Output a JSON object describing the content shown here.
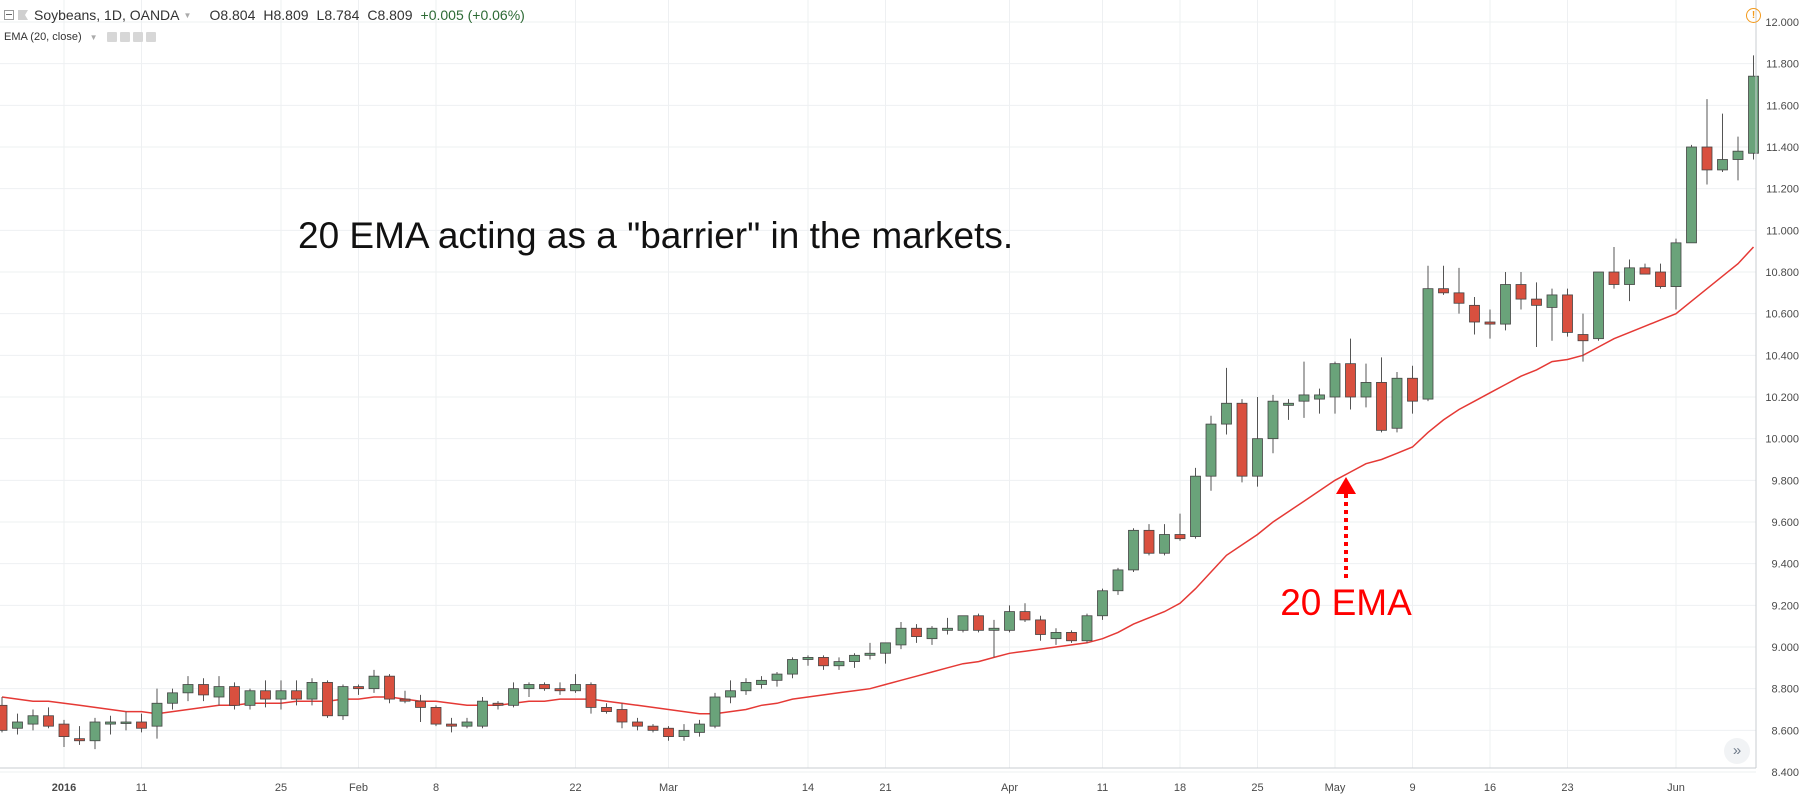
{
  "header": {
    "symbol": "Soybeans, 1D, OANDA",
    "open": "O8.804",
    "high": "H8.809",
    "low": "L8.784",
    "close": "C8.809",
    "change": "+0.005 (+0.06%)",
    "study": "EMA (20, close)"
  },
  "colors": {
    "up": "#6aa37a",
    "down": "#d9503f",
    "ema": "#e53935",
    "grid": "#eef0f2",
    "annotation": "#ff0000"
  },
  "icons": [
    "collapse-icon",
    "flag-icon",
    "alert-icon",
    "scroll-right-icon"
  ],
  "annotations": {
    "headline": "20 EMA acting as a \"barrier\" in the markets.",
    "ema_label": "20 EMA"
  },
  "chart_data": {
    "type": "candlestick",
    "ylim": [
      8.35,
      12.05
    ],
    "ytick_values": [
      8.4,
      8.6,
      8.8,
      9.0,
      9.2,
      9.4,
      9.6,
      9.8,
      10.0,
      10.2,
      10.4,
      10.6,
      10.8,
      11.0,
      11.2,
      11.4,
      11.6,
      11.8,
      12.0
    ],
    "ytick_labels": [
      "8.400",
      "8.600",
      "8.800",
      "9.000",
      "9.200",
      "9.400",
      "9.600",
      "9.800",
      "10.000",
      "10.200",
      "10.400",
      "10.600",
      "10.800",
      "11.000",
      "11.200",
      "11.400",
      "11.600",
      "11.800",
      "12.000"
    ],
    "xticks": [
      {
        "label": "2016",
        "index": 4,
        "bold": true
      },
      {
        "label": "11",
        "index": 9
      },
      {
        "label": "25",
        "index": 18
      },
      {
        "label": "Feb",
        "index": 23
      },
      {
        "label": "8",
        "index": 28
      },
      {
        "label": "22",
        "index": 37
      },
      {
        "label": "Mar",
        "index": 43
      },
      {
        "label": "14",
        "index": 52
      },
      {
        "label": "21",
        "index": 57
      },
      {
        "label": "Apr",
        "index": 65
      },
      {
        "label": "11",
        "index": 71
      },
      {
        "label": "18",
        "index": 76
      },
      {
        "label": "25",
        "index": 81
      },
      {
        "label": "May",
        "index": 86
      },
      {
        "label": "9",
        "index": 91
      },
      {
        "label": "16",
        "index": 96
      },
      {
        "label": "23",
        "index": 101
      },
      {
        "label": "Jun",
        "index": 108
      }
    ],
    "candles": [
      [
        8.72,
        8.76,
        8.59,
        8.6
      ],
      [
        8.61,
        8.68,
        8.58,
        8.64
      ],
      [
        8.63,
        8.7,
        8.6,
        8.67
      ],
      [
        8.67,
        8.71,
        8.61,
        8.62
      ],
      [
        8.63,
        8.65,
        8.52,
        8.57
      ],
      [
        8.56,
        8.62,
        8.53,
        8.55
      ],
      [
        8.55,
        8.66,
        8.51,
        8.64
      ],
      [
        8.63,
        8.67,
        8.58,
        8.64
      ],
      [
        8.64,
        8.69,
        8.6,
        8.64
      ],
      [
        8.64,
        8.68,
        8.59,
        8.61
      ],
      [
        8.62,
        8.8,
        8.56,
        8.73
      ],
      [
        8.73,
        8.8,
        8.7,
        8.78
      ],
      [
        8.78,
        8.86,
        8.74,
        8.82
      ],
      [
        8.82,
        8.85,
        8.74,
        8.77
      ],
      [
        8.76,
        8.86,
        8.72,
        8.81
      ],
      [
        8.81,
        8.83,
        8.7,
        8.72
      ],
      [
        8.72,
        8.8,
        8.7,
        8.79
      ],
      [
        8.79,
        8.84,
        8.71,
        8.75
      ],
      [
        8.75,
        8.84,
        8.7,
        8.79
      ],
      [
        8.79,
        8.84,
        8.72,
        8.75
      ],
      [
        8.75,
        8.85,
        8.72,
        8.83
      ],
      [
        8.83,
        8.84,
        8.66,
        8.67
      ],
      [
        8.67,
        8.82,
        8.65,
        8.81
      ],
      [
        8.81,
        8.82,
        8.77,
        8.8
      ],
      [
        8.8,
        8.89,
        8.78,
        8.86
      ],
      [
        8.86,
        8.87,
        8.73,
        8.75
      ],
      [
        8.75,
        8.79,
        8.73,
        8.74
      ],
      [
        8.74,
        8.77,
        8.64,
        8.71
      ],
      [
        8.71,
        8.72,
        8.62,
        8.63
      ],
      [
        8.63,
        8.66,
        8.59,
        8.62
      ],
      [
        8.62,
        8.66,
        8.61,
        8.64
      ],
      [
        8.62,
        8.76,
        8.61,
        8.74
      ],
      [
        8.73,
        8.74,
        8.7,
        8.72
      ],
      [
        8.72,
        8.83,
        8.71,
        8.8
      ],
      [
        8.8,
        8.83,
        8.76,
        8.82
      ],
      [
        8.82,
        8.83,
        8.79,
        8.8
      ],
      [
        8.8,
        8.83,
        8.77,
        8.79
      ],
      [
        8.79,
        8.87,
        8.78,
        8.82
      ],
      [
        8.82,
        8.83,
        8.68,
        8.71
      ],
      [
        8.71,
        8.73,
        8.68,
        8.69
      ],
      [
        8.7,
        8.73,
        8.61,
        8.64
      ],
      [
        8.64,
        8.66,
        8.6,
        8.62
      ],
      [
        8.62,
        8.63,
        8.59,
        8.6
      ],
      [
        8.61,
        8.62,
        8.55,
        8.57
      ],
      [
        8.57,
        8.63,
        8.55,
        8.6
      ],
      [
        8.59,
        8.65,
        8.57,
        8.63
      ],
      [
        8.62,
        8.78,
        8.61,
        8.76
      ],
      [
        8.76,
        8.84,
        8.73,
        8.79
      ],
      [
        8.79,
        8.85,
        8.77,
        8.83
      ],
      [
        8.82,
        8.86,
        8.8,
        8.84
      ],
      [
        8.84,
        8.88,
        8.81,
        8.87
      ],
      [
        8.87,
        8.95,
        8.85,
        8.94
      ],
      [
        8.94,
        8.96,
        8.91,
        8.95
      ],
      [
        8.95,
        8.96,
        8.89,
        8.91
      ],
      [
        8.91,
        8.95,
        8.89,
        8.93
      ],
      [
        8.93,
        8.97,
        8.9,
        8.96
      ],
      [
        8.96,
        9.02,
        8.94,
        8.97
      ],
      [
        8.97,
        9.02,
        8.92,
        9.02
      ],
      [
        9.01,
        9.12,
        8.99,
        9.09
      ],
      [
        9.09,
        9.11,
        9.02,
        9.05
      ],
      [
        9.04,
        9.1,
        9.01,
        9.09
      ],
      [
        9.08,
        9.14,
        9.06,
        9.09
      ],
      [
        9.08,
        9.15,
        9.07,
        9.15
      ],
      [
        9.15,
        9.16,
        9.07,
        9.08
      ],
      [
        9.08,
        9.13,
        8.95,
        9.09
      ],
      [
        9.08,
        9.2,
        9.07,
        9.17
      ],
      [
        9.17,
        9.21,
        9.12,
        9.13
      ],
      [
        9.13,
        9.15,
        9.03,
        9.06
      ],
      [
        9.04,
        9.09,
        9.01,
        9.07
      ],
      [
        9.07,
        9.08,
        9.02,
        9.03
      ],
      [
        9.03,
        9.16,
        9.02,
        9.15
      ],
      [
        9.15,
        9.28,
        9.13,
        9.27
      ],
      [
        9.27,
        9.38,
        9.25,
        9.37
      ],
      [
        9.37,
        9.57,
        9.36,
        9.56
      ],
      [
        9.56,
        9.59,
        9.44,
        9.45
      ],
      [
        9.45,
        9.59,
        9.44,
        9.54
      ],
      [
        9.54,
        9.64,
        9.51,
        9.52
      ],
      [
        9.53,
        9.86,
        9.52,
        9.82
      ],
      [
        9.82,
        10.11,
        9.75,
        10.07
      ],
      [
        10.07,
        10.34,
        10.02,
        10.17
      ],
      [
        10.17,
        10.19,
        9.79,
        9.82
      ],
      [
        9.82,
        10.2,
        9.77,
        10.0
      ],
      [
        10.0,
        10.21,
        9.93,
        10.18
      ],
      [
        10.16,
        10.19,
        10.09,
        10.17
      ],
      [
        10.18,
        10.37,
        10.1,
        10.21
      ],
      [
        10.19,
        10.24,
        10.12,
        10.21
      ],
      [
        10.2,
        10.37,
        10.12,
        10.36
      ],
      [
        10.36,
        10.48,
        10.14,
        10.2
      ],
      [
        10.2,
        10.36,
        10.15,
        10.27
      ],
      [
        10.27,
        10.39,
        10.03,
        10.04
      ],
      [
        10.05,
        10.32,
        10.03,
        10.29
      ],
      [
        10.29,
        10.35,
        10.12,
        10.18
      ],
      [
        10.19,
        10.83,
        10.18,
        10.72
      ],
      [
        10.72,
        10.83,
        10.69,
        10.7
      ],
      [
        10.7,
        10.82,
        10.6,
        10.65
      ],
      [
        10.64,
        10.68,
        10.5,
        10.56
      ],
      [
        10.56,
        10.62,
        10.48,
        10.55
      ],
      [
        10.55,
        10.8,
        10.52,
        10.74
      ],
      [
        10.74,
        10.8,
        10.62,
        10.67
      ],
      [
        10.67,
        10.75,
        10.44,
        10.64
      ],
      [
        10.63,
        10.72,
        10.47,
        10.69
      ],
      [
        10.69,
        10.72,
        10.49,
        10.51
      ],
      [
        10.5,
        10.6,
        10.37,
        10.47
      ],
      [
        10.48,
        10.8,
        10.47,
        10.8
      ],
      [
        10.8,
        10.92,
        10.72,
        10.74
      ],
      [
        10.74,
        10.86,
        10.66,
        10.82
      ],
      [
        10.82,
        10.84,
        10.79,
        10.79
      ],
      [
        10.8,
        10.84,
        10.72,
        10.73
      ],
      [
        10.73,
        10.96,
        10.62,
        10.94
      ],
      [
        10.94,
        11.41,
        10.94,
        11.4
      ],
      [
        11.4,
        11.63,
        11.22,
        11.29
      ],
      [
        11.29,
        11.56,
        11.28,
        11.34
      ],
      [
        11.34,
        11.45,
        11.24,
        11.38
      ],
      [
        11.37,
        11.84,
        11.34,
        11.74
      ]
    ],
    "ema": [
      8.76,
      8.75,
      8.74,
      8.74,
      8.73,
      8.72,
      8.71,
      8.7,
      8.69,
      8.69,
      8.68,
      8.69,
      8.7,
      8.71,
      8.72,
      8.72,
      8.73,
      8.73,
      8.73,
      8.74,
      8.74,
      8.74,
      8.75,
      8.75,
      8.76,
      8.76,
      8.75,
      8.74,
      8.74,
      8.73,
      8.72,
      8.72,
      8.72,
      8.73,
      8.74,
      8.74,
      8.75,
      8.75,
      8.75,
      8.74,
      8.73,
      8.72,
      8.71,
      8.7,
      8.69,
      8.68,
      8.68,
      8.69,
      8.7,
      8.72,
      8.73,
      8.75,
      8.76,
      8.77,
      8.78,
      8.79,
      8.8,
      8.82,
      8.84,
      8.86,
      8.88,
      8.9,
      8.92,
      8.93,
      8.95,
      8.97,
      8.98,
      8.99,
      9.0,
      9.01,
      9.02,
      9.04,
      9.07,
      9.11,
      9.14,
      9.17,
      9.21,
      9.28,
      9.36,
      9.44,
      9.49,
      9.54,
      9.6,
      9.65,
      9.7,
      9.75,
      9.8,
      9.84,
      9.88,
      9.9,
      9.93,
      9.96,
      10.03,
      10.09,
      10.14,
      10.18,
      10.22,
      10.26,
      10.3,
      10.33,
      10.37,
      10.38,
      10.4,
      10.44,
      10.48,
      10.51,
      10.54,
      10.57,
      10.6,
      10.66,
      10.72,
      10.78,
      10.84,
      10.92
    ]
  }
}
